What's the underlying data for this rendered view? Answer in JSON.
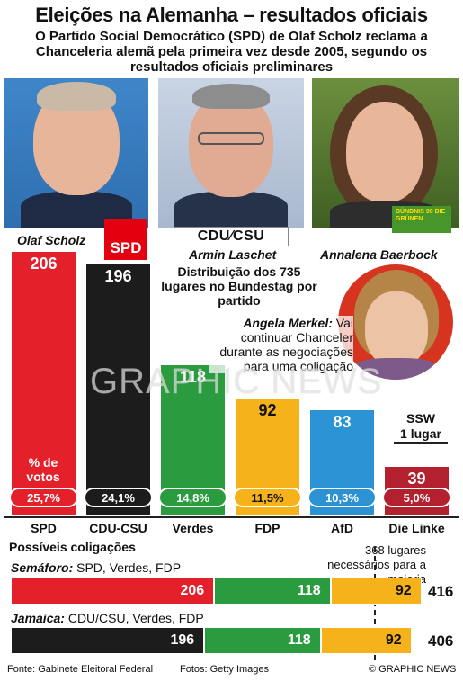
{
  "header": {
    "title": "Eleições na Alemanha – resultados oficiais",
    "subtitle": "O Partido Social Democrático (SPD) de Olaf Scholz reclama a Chanceleria alemã pela primeira vez desde 2005, segundo os resultados oficiais preliminares"
  },
  "people": {
    "scholz": "Olaf Scholz",
    "laschet": "Armin Laschet",
    "baerbock": "Annalena Baerbock"
  },
  "logos": {
    "spd": "SPD",
    "cdu": "CDU⁄CSU",
    "gruene": "BÜNDNIS 90 DIE GRÜNEN"
  },
  "notes": {
    "votes": "% de votos",
    "distribution": "Distribuição dos 735 lugares no Bundestag por partido",
    "merkel_name": "Angela Merkel:",
    "merkel_text": "Vai continuar Chanceler durante as negociações para uma coligação",
    "ssw_name": "SSW",
    "ssw_seats": "1 lugar",
    "watermark": "GRAPHIC NEWS"
  },
  "chart_data": {
    "type": "bar",
    "categories": [
      "SPD",
      "CDU-CSU",
      "Verdes",
      "FDP",
      "AfD",
      "Die Linke"
    ],
    "seats": [
      206,
      196,
      118,
      92,
      83,
      39
    ],
    "vote_pct": [
      "25,7%",
      "24,1%",
      "14,8%",
      "11,5%",
      "10,3%",
      "5,0%"
    ],
    "colors": [
      "#e4202b",
      "#1c1c1c",
      "#2a9b3f",
      "#f6b21a",
      "#2b93d4",
      "#b3202e"
    ],
    "title": "Distribuição dos 735 lugares no Bundestag por partido"
  },
  "coalitions": {
    "title": "Possíveis coligações",
    "majority_note": "368 lugares necessários para a maioria",
    "majority": 368,
    "items": [
      {
        "name": "Semáforo:",
        "parties": "SPD, Verdes, FDP",
        "segments": [
          {
            "value": 206,
            "label": "206",
            "color": "#e4202b"
          },
          {
            "value": 118,
            "label": "118",
            "color": "#2a9b3f"
          },
          {
            "value": 92,
            "label": "92",
            "color": "#f6b21a"
          }
        ],
        "total": "416"
      },
      {
        "name": "Jamaica:",
        "parties": "CDU/CSU, Verdes, FDP",
        "segments": [
          {
            "value": 196,
            "label": "196",
            "color": "#1c1c1c"
          },
          {
            "value": 118,
            "label": "118",
            "color": "#2a9b3f"
          },
          {
            "value": 92,
            "label": "92",
            "color": "#f6b21a"
          }
        ],
        "total": "406"
      }
    ]
  },
  "footer": {
    "source": "Fonte: Gabinete Eleitoral Federal",
    "photos": "Fotos: Getty Images",
    "credit": "© GRAPHIC NEWS"
  }
}
